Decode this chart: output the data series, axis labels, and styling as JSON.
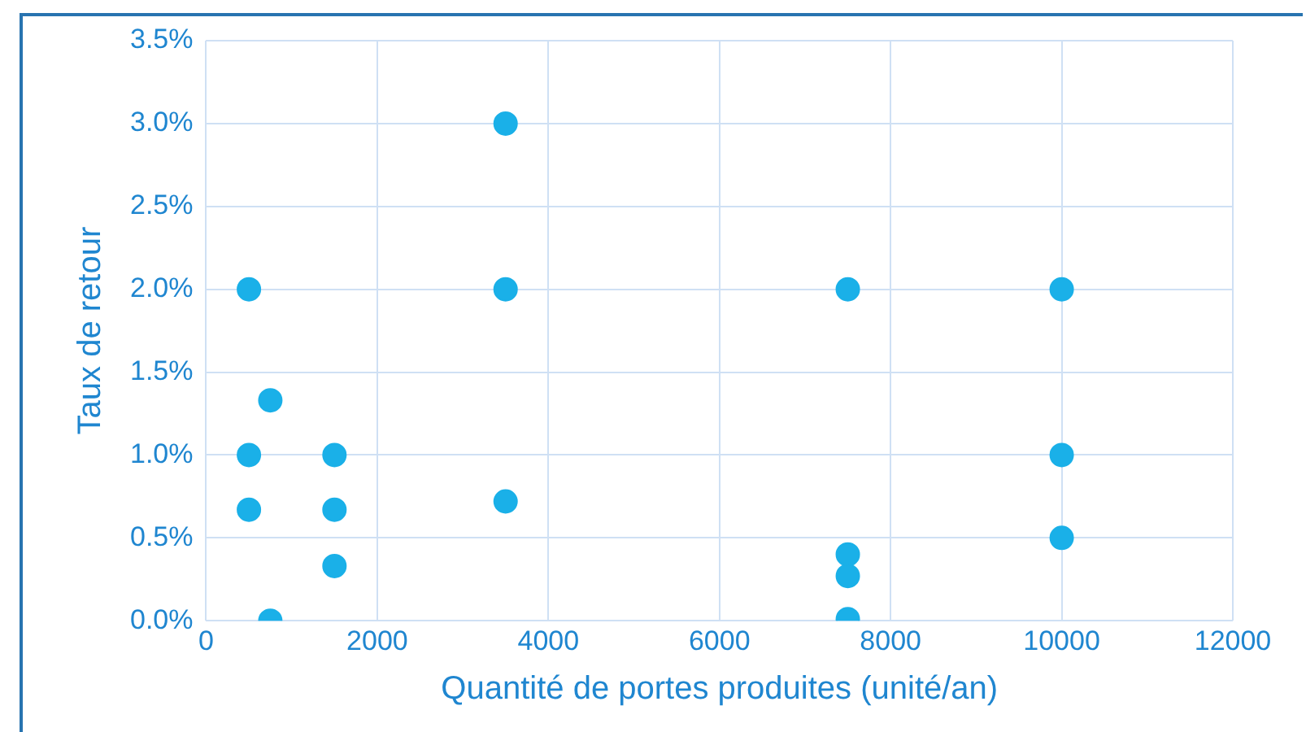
{
  "chart_data": {
    "type": "scatter",
    "xlabel": "Quantité de portes produites (unité/an)",
    "ylabel": "Taux de retour",
    "x": [
      500,
      500,
      500,
      750,
      750,
      1500,
      1500,
      1500,
      3500,
      3500,
      3500,
      7500,
      7500,
      7500,
      7500,
      10000,
      10000,
      10000
    ],
    "series": [
      {
        "color": "#1ab0e8",
        "values": [
          2.0,
          1.0,
          0.67,
          1.33,
          0,
          1.0,
          0.67,
          0.33,
          3.0,
          2.0,
          0.72,
          2.0,
          0.4,
          0.27,
          0.01,
          2.0,
          1.0,
          0.5
        ]
      }
    ],
    "xlim": [
      0,
      12000
    ],
    "xticks": [
      0,
      2000,
      4000,
      6000,
      8000,
      10000,
      12000
    ],
    "ylim": [
      0,
      3.5
    ],
    "yticks": [
      {
        "value": 0,
        "label": "0.0%"
      },
      {
        "value": 0.5,
        "label": "0.5%"
      },
      {
        "value": 1,
        "label": "1.0%"
      },
      {
        "value": 1.5,
        "label": "1.5%"
      },
      {
        "value": 2,
        "label": "2.0%"
      },
      {
        "value": 2.5,
        "label": "2.5%"
      },
      {
        "value": 3,
        "label": "3.0%"
      },
      {
        "value": 3.5,
        "label": "3.5%"
      }
    ],
    "grid": true,
    "legend": false,
    "marker": "circle"
  }
}
